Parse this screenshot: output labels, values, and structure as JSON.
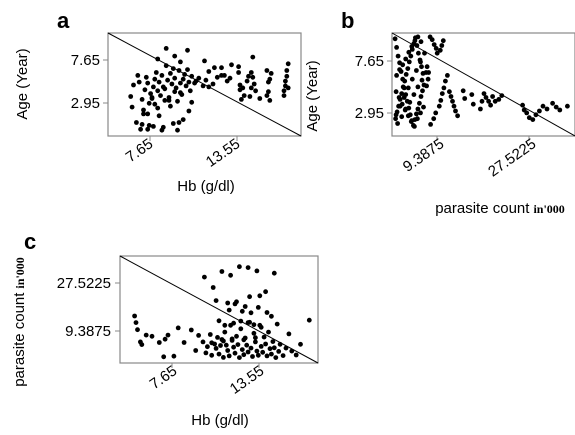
{
  "chart_data": [
    {
      "panel": "a",
      "type": "scatter",
      "xlabel": "Hb (g/dl)",
      "ylabel": "Age (Year)",
      "xticks": [
        "7.65",
        "13.55"
      ],
      "yticks": [
        "7.65",
        "2.95"
      ],
      "xlim": [
        3.8,
        17.4
      ],
      "ylim": [
        0.0,
        10.7
      ],
      "grid": false,
      "trend_line": [
        [
          3.8,
          10.7
        ],
        [
          17.4,
          0.0
        ]
      ],
      "x": [
        5.4,
        5.5,
        5.6,
        5.9,
        6.0,
        6.2,
        6.3,
        6.4,
        6.5,
        6.6,
        6.7,
        6.8,
        5.8,
        6.1,
        6.6,
        6.7,
        6.9,
        7.0,
        7.1,
        7.2,
        7.3,
        7.3,
        7.4,
        7.5,
        7.6,
        7.7,
        7.8,
        7.8,
        7.9,
        8.0,
        8.1,
        8.2,
        8.2,
        8.3,
        8.4,
        8.5,
        8.5,
        8.6,
        8.7,
        8.8,
        8.9,
        9.0,
        9.1,
        9.2,
        9.3,
        9.4,
        9.5,
        9.6,
        9.7,
        9.9,
        10.0,
        10.2,
        10.5,
        10.7,
        10.9,
        11.2,
        11.5,
        11.8,
        12.0,
        12.2,
        12.4,
        13.0,
        13.0,
        13.1,
        13.1,
        13.2,
        13.3,
        13.6,
        13.7,
        13.8,
        13.9,
        14.0,
        14.1,
        14.2,
        15.0,
        15.0,
        15.1,
        15.1,
        15.2,
        15.2,
        15.3,
        16.2,
        16.2,
        16.3,
        16.3,
        16.4,
        16.4,
        16.5,
        16.5,
        7.3,
        7.9,
        8.5,
        8.9,
        9.4,
        9.5,
        6.2,
        6.6,
        7.0,
        7.6,
        8.8,
        9.1,
        7.4,
        7.7,
        8.4,
        8.7,
        6.3,
        6.9,
        7.1,
        8.1,
        8.9,
        9.7
      ],
      "y": [
        4.1,
        3.0,
        5.3,
        6.3,
        5.6,
        3.8,
        2.7,
        4.8,
        6.1,
        5.5,
        3.4,
        4.4,
        1.4,
        0.7,
        2.3,
        1.1,
        3.9,
        5.1,
        5.9,
        6.6,
        4.7,
        2.9,
        5.6,
        4.2,
        6.3,
        5.1,
        3.7,
        4.9,
        7.3,
        5.8,
        4.0,
        6.5,
        3.1,
        5.4,
        7.0,
        4.6,
        6.0,
        5.0,
        3.6,
        6.8,
        5.5,
        4.3,
        5.9,
        6.4,
        5.2,
        6.9,
        5.6,
        4.7,
        6.2,
        5.5,
        5.7,
        6.0,
        5.2,
        5.8,
        5.1,
        5.4,
        6.1,
        7.1,
        6.3,
        5.7,
        6.0,
        7.2,
        6.6,
        5.3,
        4.8,
        3.8,
        5.0,
        5.7,
        6.2,
        4.1,
        5.0,
        6.1,
        5.4,
        4.7,
        6.8,
        4.2,
        5.6,
        4.6,
        5.9,
        3.7,
        6.5,
        4.2,
        4.7,
        5.2,
        5.7,
        6.2,
        6.8,
        7.5,
        5.0,
        8.0,
        9.1,
        8.3,
        7.7,
        8.9,
        2.6,
        1.2,
        0.7,
        1.0,
        0.6,
        1.4,
        1.7,
        2.1,
        0.9,
        1.3,
        0.6,
        2.3,
        4.0,
        3.3,
        3.7,
        4.5,
        3.5
      ],
      "x_extra": [
        10.6,
        10.9,
        11.3,
        11.8,
        14.0,
        13.9,
        14.5,
        13.4,
        12.5
      ],
      "y_extra": [
        7.8,
        6.7,
        7.1,
        6.3,
        8.2,
        6.6,
        3.9,
        4.2,
        7.4
      ]
    },
    {
      "panel": "b",
      "type": "scatter",
      "xlabel": "parasite count",
      "xlabel_suffix": "in'000",
      "ylabel": "Age (Year)",
      "xticks": [
        "9.3875",
        "27.5225"
      ],
      "yticks": [
        "7.65",
        "2.95"
      ],
      "xlim": [
        0.0,
        36.0
      ],
      "ylim": [
        0.0,
        10.7
      ],
      "grid": false,
      "trend_line": [
        [
          0.0,
          10.7
        ],
        [
          36.0,
          0.0
        ]
      ],
      "x": [
        0.6,
        0.9,
        1.2,
        1.5,
        1.8,
        2.1,
        2.4,
        2.7,
        3.0,
        3.3,
        3.6,
        3.9,
        4.2,
        4.5,
        4.8,
        5.1,
        5.4,
        5.7,
        6.0,
        6.3,
        0.7,
        1.0,
        1.3,
        1.6,
        1.9,
        2.2,
        2.5,
        2.8,
        3.1,
        3.4,
        3.7,
        4.0,
        4.3,
        4.6,
        4.9,
        5.2,
        5.5,
        5.8,
        6.1,
        0.8,
        1.4,
        2.0,
        2.6,
        3.2,
        3.8,
        4.4,
        5.0,
        5.6,
        6.2,
        0.9,
        1.5,
        2.1,
        2.7,
        3.3,
        3.9,
        4.5,
        5.1,
        5.7,
        0.8,
        1.6,
        2.4,
        3.2,
        4.0,
        4.8,
        5.6,
        6.4,
        1.1,
        1.9,
        2.7,
        3.5,
        4.3,
        5.1,
        5.9,
        6.7,
        7.5,
        7.9,
        8.3,
        8.7,
        8.9,
        7.6,
        8.2,
        8.6,
        9.3,
        9.6,
        9.9,
        10.2,
        10.5,
        10.9,
        9.5,
        9.8,
        10.1,
        11.3,
        11.6,
        11.9,
        12.2,
        12.5,
        12.9,
        6.9,
        7.2,
        7.1,
        6.8,
        14.0,
        14.3,
        15.7,
        16.0,
        17.4,
        17.7,
        18.1,
        18.5,
        19.0,
        19.4,
        19.8,
        20.3,
        21.0,
        21.6,
        25.7,
        26.0,
        26.5,
        27.0,
        27.7,
        28.3,
        29.0,
        29.7,
        30.5,
        31.6,
        32.3,
        33.0,
        34.5
      ],
      "y": [
        10.1,
        9.2,
        8.3,
        7.6,
        6.7,
        5.9,
        5.0,
        4.3,
        3.6,
        2.9,
        2.2,
        1.6,
        1.1,
        1.7,
        2.3,
        2.8,
        3.4,
        4.1,
        4.7,
        5.3,
        1.8,
        2.5,
        3.1,
        3.8,
        4.4,
        5.1,
        5.7,
        6.4,
        7.0,
        7.7,
        8.3,
        9.0,
        9.6,
        10.2,
        9.4,
        8.6,
        7.9,
        7.2,
        6.5,
        4.6,
        4.0,
        3.3,
        2.7,
        2.1,
        1.5,
        1.0,
        1.8,
        2.4,
        3.0,
        6.3,
        6.9,
        7.4,
        8.0,
        8.7,
        9.3,
        9.9,
        10.3,
        9.8,
        2.2,
        3.1,
        4.0,
        5.0,
        5.9,
        6.8,
        7.7,
        8.6,
        1.3,
        2.0,
        2.8,
        3.5,
        4.3,
        5.1,
        5.8,
        6.6,
        10.3,
        10.0,
        9.5,
        9.1,
        8.6,
        1.2,
        1.8,
        2.4,
        3.1,
        3.7,
        4.4,
        5.0,
        5.7,
        6.3,
        8.9,
        9.4,
        9.9,
        4.6,
        4.1,
        3.6,
        3.1,
        2.6,
        2.1,
        7.2,
        6.6,
        5.9,
        5.2,
        4.7,
        3.9,
        4.3,
        3.3,
        2.8,
        3.6,
        4.4,
        4.0,
        3.6,
        3.2,
        4.1,
        3.6,
        3.8,
        4.2,
        3.2,
        2.7,
        2.4,
        1.9,
        1.7,
        2.2,
        2.6,
        3.1,
        2.8,
        3.4,
        3.0,
        2.7,
        3.1
      ]
    },
    {
      "panel": "c",
      "type": "scatter",
      "xlabel": "Hb (g/dl)",
      "ylabel": "parasite count",
      "ylabel_suffix": "in'000",
      "xticks": [
        "7.65",
        "13.55"
      ],
      "yticks": [
        "27.5225",
        "9.3875"
      ],
      "xlim": [
        3.8,
        17.4
      ],
      "ylim": [
        0.0,
        36.0
      ],
      "grid": false,
      "trend_line": [
        [
          3.8,
          36.0
        ],
        [
          17.4,
          0.0
        ]
      ],
      "x": [
        4.8,
        4.9,
        5.0,
        5.2,
        5.3,
        5.6,
        6.0,
        6.5,
        6.8,
        6.9,
        7.1,
        7.5,
        7.8,
        8.2,
        8.7,
        9.0,
        9.2,
        9.5,
        9.7,
        9.8,
        10.0,
        10.1,
        10.3,
        10.4,
        10.5,
        10.6,
        10.7,
        10.8,
        10.9,
        11.0,
        11.1,
        11.2,
        11.3,
        11.4,
        11.5,
        11.6,
        11.7,
        11.8,
        11.9,
        12.0,
        12.1,
        12.2,
        12.3,
        12.4,
        12.5,
        12.6,
        12.7,
        12.8,
        12.9,
        13.0,
        13.1,
        13.2,
        13.3,
        13.4,
        13.5,
        13.6,
        13.7,
        13.8,
        13.9,
        14.0,
        14.1,
        14.2,
        14.3,
        14.4,
        14.5,
        14.6,
        14.7,
        14.8,
        15.0,
        15.2,
        15.4,
        15.6,
        15.9,
        16.2,
        16.8,
        9.6,
        10.2,
        10.8,
        11.4,
        12.0,
        12.6,
        13.2,
        13.8,
        14.4,
        11.3,
        11.7,
        12.2,
        12.8,
        13.3,
        13.9,
        10.6,
        11.0,
        11.6,
        12.1,
        12.6,
        13.0,
        13.5,
        10.1,
        10.9,
        11.5,
        12.3,
        13.1,
        12.7,
        10.4,
        11.8,
        13.4,
        14.2,
        11.2,
        12.4
      ],
      "y": [
        15.8,
        13.6,
        11.2,
        7.1,
        6.2,
        9.4,
        9.0,
        6.9,
        2.1,
        8.0,
        9.4,
        2.3,
        11.8,
        6.9,
        11.1,
        4.2,
        9.3,
        7.1,
        3.4,
        5.5,
        9.6,
        2.6,
        6.4,
        4.9,
        8.6,
        3.0,
        5.9,
        7.9,
        1.9,
        10.4,
        6.0,
        4.2,
        2.4,
        12.7,
        7.6,
        5.3,
        3.3,
        9.0,
        6.2,
        1.8,
        11.5,
        4.5,
        2.8,
        8.4,
        6.0,
        3.7,
        13.7,
        5.0,
        2.2,
        10.0,
        7.1,
        4.0,
        2.6,
        12.7,
        5.6,
        3.6,
        8.7,
        6.4,
        2.4,
        10.4,
        4.8,
        3.0,
        7.2,
        5.1,
        1.8,
        13.1,
        3.9,
        6.3,
        2.5,
        5.0,
        9.8,
        4.0,
        2.7,
        6.3,
        14.4,
        28.9,
        25.4,
        30.8,
        29.5,
        32.4,
        32.1,
        31.0,
        24.0,
        30.2,
        17.8,
        19.9,
        17.4,
        16.9,
        18.7,
        17.0,
        14.2,
        12.7,
        13.4,
        14.1,
        13.6,
        12.9,
        12.0,
        6.8,
        7.4,
        8.1,
        7.8,
        8.5,
        22.3,
        21.0,
        20.6,
        22.6,
        15.7,
        20.2,
        19.0
      ]
    }
  ]
}
